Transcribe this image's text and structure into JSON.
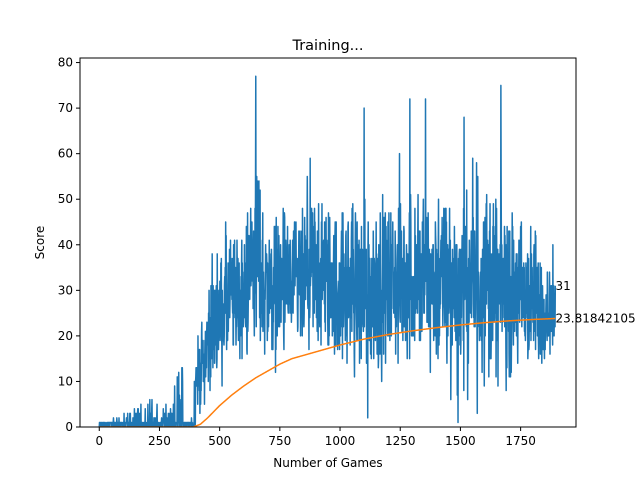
{
  "chart_data": {
    "type": "line",
    "title": "Training...",
    "xlabel": "Number of Games",
    "ylabel": "Score",
    "xlim": [
      -80,
      1980
    ],
    "ylim": [
      0,
      81
    ],
    "xticks": [
      0,
      250,
      500,
      750,
      1000,
      1250,
      1500,
      1750
    ],
    "yticks": [
      0,
      10,
      20,
      30,
      40,
      50,
      60,
      70,
      80
    ],
    "n_games": 1895,
    "grid": false,
    "legend": "none",
    "series": [
      {
        "color": "#1f77b4",
        "envelope": {
          "x": [
            0,
            100,
            200,
            300,
            340,
            350,
            380,
            400,
            430,
            460,
            500,
            550,
            600,
            650,
            700,
            750,
            800,
            900,
            1000,
            1100,
            1200,
            1300,
            1400,
            1500,
            1600,
            1700,
            1800,
            1895
          ],
          "upper": [
            1,
            3,
            7,
            4,
            21,
            10,
            8,
            24,
            30,
            46,
            48,
            57,
            50,
            77,
            58,
            60,
            58,
            65,
            63,
            66,
            64,
            66,
            68,
            65,
            75,
            63,
            58,
            40
          ],
          "lower": [
            0,
            0,
            0,
            0,
            0,
            0,
            0,
            0,
            1,
            3,
            6,
            7,
            9,
            10,
            8,
            8,
            9,
            8,
            6,
            3,
            7,
            6,
            4,
            3,
            2,
            3,
            4,
            13
          ],
          "spikes": [
            {
              "x": 650,
              "y": 77
            },
            {
              "x": 1668,
              "y": 75
            },
            {
              "x": 1355,
              "y": 72
            },
            {
              "x": 1100,
              "y": 70
            },
            {
              "x": 1290,
              "y": 72
            },
            {
              "x": 1515,
              "y": 68
            },
            {
              "x": 1460,
              "y": 6
            },
            {
              "x": 1490,
              "y": 1
            },
            {
              "x": 1570,
              "y": 3
            },
            {
              "x": 1115,
              "y": 2
            }
          ]
        },
        "last_value": 31
      },
      {
        "color": "#ff7f0e",
        "x": [
          0,
          390,
          420,
          450,
          500,
          550,
          600,
          650,
          700,
          750,
          800,
          900,
          1000,
          1100,
          1200,
          1300,
          1400,
          1500,
          1600,
          1700,
          1800,
          1895
        ],
        "values": [
          0,
          0,
          0.6,
          2.0,
          4.7,
          7.0,
          9.0,
          10.8,
          12.3,
          13.8,
          15.0,
          16.5,
          18.0,
          19.3,
          20.3,
          21.1,
          21.8,
          22.4,
          22.9,
          23.3,
          23.6,
          23.818421052
        ],
        "last_value": 23.818421052
      }
    ],
    "annotations": [
      {
        "text": "31",
        "x": 1895,
        "y": 31
      },
      {
        "text": "23.81842105",
        "x": 1895,
        "y": 23.818421052
      }
    ]
  }
}
